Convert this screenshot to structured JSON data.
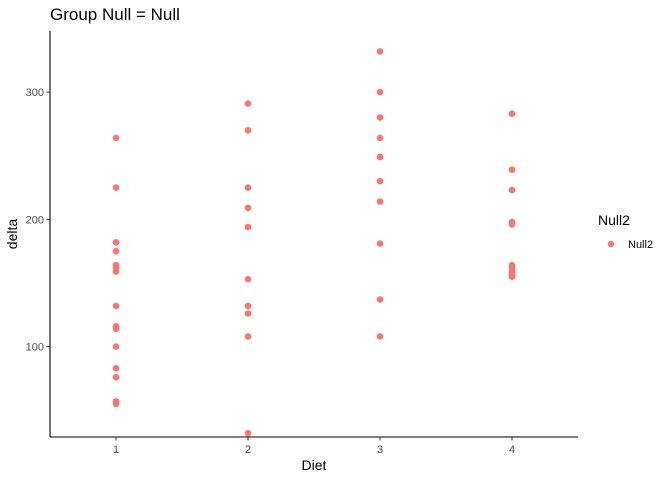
{
  "chart_data": {
    "type": "scatter",
    "title": "Group Null  = Null",
    "xlabel": "Diet",
    "ylabel": "delta",
    "categories": [
      "1",
      "2",
      "3",
      "4"
    ],
    "xlim": [
      0.5,
      4.5
    ],
    "ylim": [
      29,
      348
    ],
    "y_ticks": [
      100,
      200,
      300
    ],
    "grid": false,
    "legend": {
      "title": "Null2",
      "position": "right",
      "entries": [
        "Null2"
      ]
    },
    "color": "#F8766D",
    "series": [
      {
        "name": "Null2",
        "points": [
          {
            "x": 1,
            "y": 264
          },
          {
            "x": 1,
            "y": 225
          },
          {
            "x": 1,
            "y": 182
          },
          {
            "x": 1,
            "y": 175
          },
          {
            "x": 1,
            "y": 164
          },
          {
            "x": 1,
            "y": 162
          },
          {
            "x": 1,
            "y": 159
          },
          {
            "x": 1,
            "y": 132
          },
          {
            "x": 1,
            "y": 116
          },
          {
            "x": 1,
            "y": 114
          },
          {
            "x": 1,
            "y": 100
          },
          {
            "x": 1,
            "y": 83
          },
          {
            "x": 1,
            "y": 76
          },
          {
            "x": 1,
            "y": 57
          },
          {
            "x": 1,
            "y": 55
          },
          {
            "x": 2,
            "y": 291
          },
          {
            "x": 2,
            "y": 270
          },
          {
            "x": 2,
            "y": 225
          },
          {
            "x": 2,
            "y": 209
          },
          {
            "x": 2,
            "y": 194
          },
          {
            "x": 2,
            "y": 153
          },
          {
            "x": 2,
            "y": 132
          },
          {
            "x": 2,
            "y": 126
          },
          {
            "x": 2,
            "y": 108
          },
          {
            "x": 2,
            "y": 32
          },
          {
            "x": 3,
            "y": 332
          },
          {
            "x": 3,
            "y": 300
          },
          {
            "x": 3,
            "y": 280
          },
          {
            "x": 3,
            "y": 264
          },
          {
            "x": 3,
            "y": 249
          },
          {
            "x": 3,
            "y": 230
          },
          {
            "x": 3,
            "y": 214
          },
          {
            "x": 3,
            "y": 181
          },
          {
            "x": 3,
            "y": 137
          },
          {
            "x": 3,
            "y": 108
          },
          {
            "x": 4,
            "y": 283
          },
          {
            "x": 4,
            "y": 239
          },
          {
            "x": 4,
            "y": 223
          },
          {
            "x": 4,
            "y": 198
          },
          {
            "x": 4,
            "y": 196
          },
          {
            "x": 4,
            "y": 164
          },
          {
            "x": 4,
            "y": 162
          },
          {
            "x": 4,
            "y": 159
          },
          {
            "x": 4,
            "y": 157
          },
          {
            "x": 4,
            "y": 155
          }
        ]
      }
    ]
  }
}
